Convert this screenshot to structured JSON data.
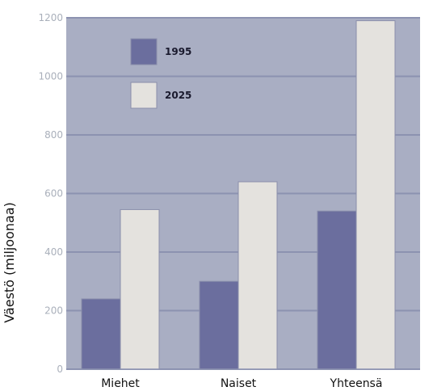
{
  "chart_data": {
    "type": "bar",
    "categories": [
      "Miehet",
      "Naiset",
      "Yhteensä"
    ],
    "series": [
      {
        "name": "1995",
        "values": [
          240,
          300,
          540
        ],
        "color": "#6b6e9e"
      },
      {
        "name": "2025",
        "values": [
          545,
          640,
          1190
        ],
        "color": "#e4e2de"
      }
    ],
    "title": "",
    "xlabel": "",
    "ylabel": "Väestö (miljoonaa)",
    "ylim": [
      0,
      1200
    ],
    "yticks": [
      0,
      200,
      400,
      600,
      800,
      1000,
      1200
    ],
    "grid": true,
    "legend_position": "top-left",
    "plot_background": "#a9aec3",
    "grid_color": "#8c92b0"
  }
}
